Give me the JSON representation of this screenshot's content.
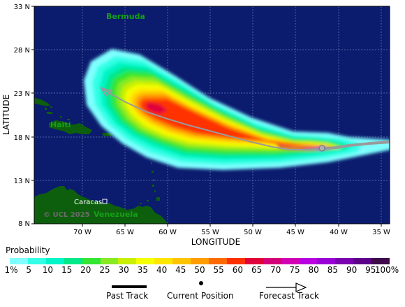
{
  "map": {
    "lat_labels": [
      "33 N",
      "28 N",
      "23 N",
      "18 N",
      "13 N",
      "8 N"
    ],
    "lon_labels": [
      "70 W",
      "65 W",
      "60 W",
      "55 W",
      "50 W",
      "45 W",
      "40 W",
      "35 W"
    ],
    "x_axis_title": "LONGITUDE",
    "y_axis_title": "LATITUDE",
    "lat_range": [
      8,
      33
    ],
    "lon_range": [
      -75,
      -33
    ],
    "places": {
      "bermuda": "Bermuda",
      "haiti": "Haiti",
      "caracas": "Caracas",
      "venezuela": "Venezuela"
    },
    "copyright": "© UCL 2025",
    "colors": {
      "ocean": "#0b1b6e",
      "land": "#0d5e0d",
      "track": "#9a9a9a"
    }
  },
  "legend": {
    "title": "Probability",
    "tick_labels": [
      "1%",
      "5",
      "10",
      "15",
      "20",
      "25",
      "30",
      "35",
      "40",
      "45",
      "50",
      "55",
      "60",
      "65",
      "70",
      "75",
      "80",
      "85",
      "90",
      "95",
      "100%"
    ],
    "colors": [
      "#7fffff",
      "#33ffe6",
      "#00f5c8",
      "#00e88a",
      "#33e633",
      "#88ea22",
      "#c8f000",
      "#f5ff00",
      "#ffe600",
      "#ffc400",
      "#ff9d00",
      "#ff6a00",
      "#ff3000",
      "#e0003a",
      "#d40078",
      "#d200b4",
      "#b800e0",
      "#9a00d6",
      "#7a00b0",
      "#5c008a",
      "#3f0a4a"
    ]
  },
  "key": {
    "past_track": "Past Track",
    "current_position": "Current Position",
    "forecast_track": "Forecast Track"
  }
}
